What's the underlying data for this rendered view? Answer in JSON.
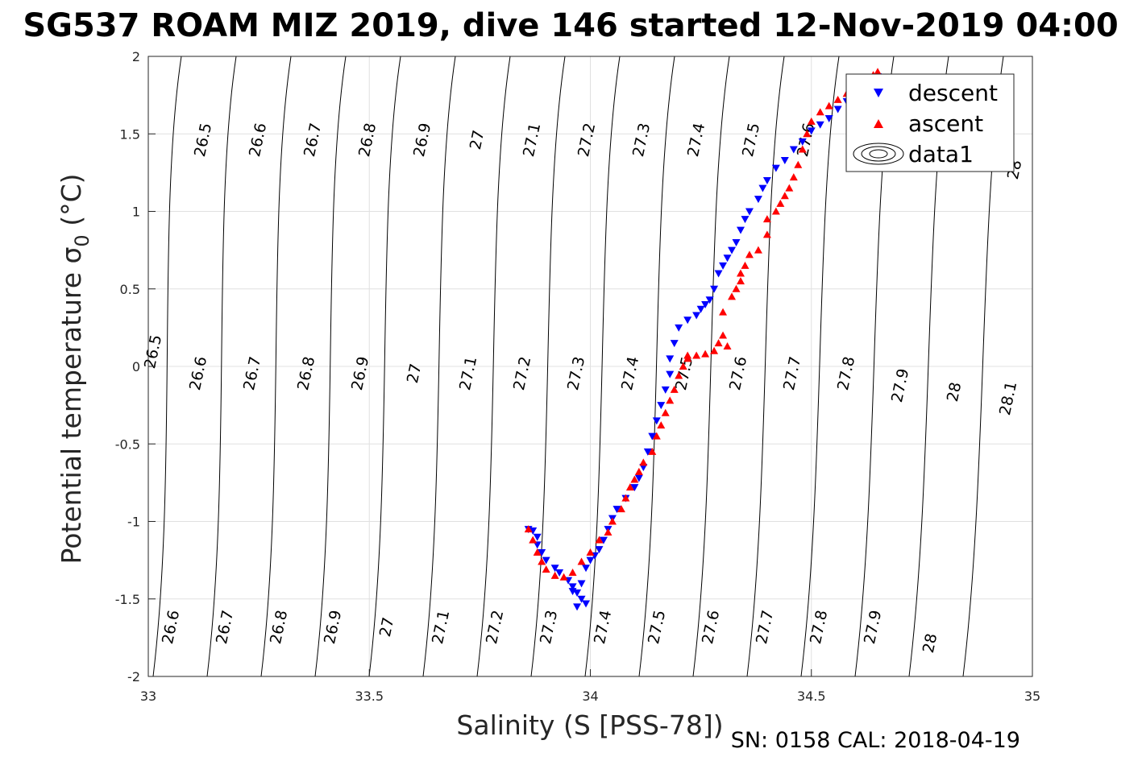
{
  "chart_data": {
    "type": "scatter",
    "title": "SG537 ROAM MIZ 2019, dive 146 started 12-Nov-2019 04:00",
    "xlabel": "Salinity (S [PSS-78])",
    "ylabel_main": "Potential temperature ",
    "ylabel_symbol": "σ",
    "ylabel_sub": "0",
    "ylabel_unit": " (°C)",
    "footer": "SN: 0158  CAL: 2018-04-19",
    "xlim": [
      33,
      35
    ],
    "ylim": [
      -2,
      2
    ],
    "xticks": [
      33,
      33.5,
      34,
      34.5,
      35
    ],
    "xtick_labels": [
      "33",
      "33.5",
      "34",
      "34.5",
      "35"
    ],
    "yticks": [
      -2,
      -1.5,
      -1,
      -0.5,
      0,
      0.5,
      1,
      1.5,
      2
    ],
    "ytick_labels": [
      "-2",
      "-1.5",
      "-1",
      "-0.5",
      "0",
      "0.5",
      "1",
      "1.5",
      "2"
    ],
    "grid": true,
    "legend_position": "top-right",
    "colors": {
      "descent": "#0000ff",
      "ascent": "#ff0000",
      "contour": "#000000",
      "grid": "#e0e0e0"
    },
    "series": [
      {
        "name": "descent",
        "marker": "triangle-down",
        "x": [
          33.86,
          33.87,
          33.88,
          33.88,
          33.89,
          33.9,
          33.92,
          33.93,
          33.95,
          33.96,
          33.97,
          33.98,
          33.99,
          33.97,
          33.96,
          33.98,
          33.99,
          34.0,
          34.01,
          34.02,
          34.03,
          34.04,
          34.05,
          34.06,
          34.08,
          34.1,
          34.11,
          34.12,
          34.13,
          34.14,
          34.15,
          34.16,
          34.17,
          34.18,
          34.18,
          34.19,
          34.2,
          34.22,
          34.24,
          34.25,
          34.26,
          34.27,
          34.28,
          34.29,
          34.3,
          34.31,
          34.32,
          34.33,
          34.34,
          34.35,
          34.36,
          34.38,
          34.39,
          34.4,
          34.42,
          34.44,
          34.46,
          34.48,
          34.5,
          34.52,
          34.54,
          34.56,
          34.58,
          34.6,
          34.62,
          34.64,
          34.65
        ],
        "y": [
          -1.05,
          -1.06,
          -1.1,
          -1.15,
          -1.2,
          -1.25,
          -1.3,
          -1.33,
          -1.38,
          -1.42,
          -1.46,
          -1.5,
          -1.53,
          -1.55,
          -1.45,
          -1.4,
          -1.3,
          -1.25,
          -1.22,
          -1.18,
          -1.12,
          -1.05,
          -0.98,
          -0.92,
          -0.85,
          -0.78,
          -0.72,
          -0.65,
          -0.55,
          -0.45,
          -0.35,
          -0.25,
          -0.15,
          -0.05,
          0.05,
          0.15,
          0.25,
          0.3,
          0.33,
          0.37,
          0.4,
          0.43,
          0.5,
          0.6,
          0.65,
          0.7,
          0.75,
          0.8,
          0.88,
          0.95,
          1.0,
          1.08,
          1.15,
          1.2,
          1.28,
          1.33,
          1.4,
          1.45,
          1.52,
          1.56,
          1.6,
          1.66,
          1.71,
          1.75,
          1.8,
          1.84,
          1.87
        ]
      },
      {
        "name": "ascent",
        "marker": "triangle-up",
        "x": [
          33.86,
          33.87,
          33.88,
          33.89,
          33.9,
          33.92,
          33.94,
          33.96,
          33.98,
          34.0,
          34.02,
          34.04,
          34.05,
          34.07,
          34.08,
          34.09,
          34.1,
          34.11,
          34.12,
          34.14,
          34.15,
          34.16,
          34.17,
          34.18,
          34.19,
          34.2,
          34.21,
          34.22,
          34.22,
          34.24,
          34.26,
          34.28,
          34.29,
          34.3,
          34.31,
          34.3,
          34.32,
          34.33,
          34.34,
          34.34,
          34.35,
          34.36,
          34.38,
          34.4,
          34.4,
          34.42,
          34.43,
          34.44,
          34.45,
          34.46,
          34.47,
          34.48,
          34.49,
          34.5,
          34.52,
          34.54,
          34.56,
          34.58,
          34.6,
          34.62,
          34.64,
          34.65
        ],
        "y": [
          -1.05,
          -1.12,
          -1.2,
          -1.26,
          -1.31,
          -1.35,
          -1.36,
          -1.33,
          -1.26,
          -1.2,
          -1.12,
          -1.07,
          -1.0,
          -0.92,
          -0.85,
          -0.78,
          -0.73,
          -0.68,
          -0.62,
          -0.55,
          -0.45,
          -0.38,
          -0.3,
          -0.22,
          -0.15,
          -0.06,
          0.0,
          0.05,
          0.07,
          0.07,
          0.08,
          0.1,
          0.15,
          0.2,
          0.13,
          0.35,
          0.45,
          0.5,
          0.55,
          0.6,
          0.65,
          0.72,
          0.75,
          0.85,
          0.95,
          1.0,
          1.05,
          1.1,
          1.15,
          1.22,
          1.3,
          1.4,
          1.5,
          1.58,
          1.64,
          1.68,
          1.72,
          1.76,
          1.8,
          1.85,
          1.88,
          1.9
        ]
      }
    ],
    "legend": [
      {
        "label": "descent",
        "symbol": "triangle-down"
      },
      {
        "label": "ascent",
        "symbol": "triangle-up"
      },
      {
        "label": "data1",
        "symbol": "contour"
      }
    ],
    "isopycnal_labels": {
      "top_row": [
        "26.5",
        "26.6",
        "26.7",
        "26.8",
        "26.9",
        "27",
        "27.1",
        "27.2",
        "27.3",
        "27.4",
        "27.5",
        "27.6",
        "28"
      ],
      "middle_row": [
        "26.5",
        "26.6",
        "26.7",
        "26.8",
        "26.9",
        "27",
        "27.1",
        "27.2",
        "27.3",
        "27.4",
        "27.5",
        "27.6",
        "27.7",
        "27.8",
        "27.9",
        "28",
        "28.1"
      ],
      "bottom_row": [
        "26.6",
        "26.7",
        "26.8",
        "26.9",
        "27",
        "27.1",
        "27.2",
        "27.3",
        "27.4",
        "27.5",
        "27.6",
        "27.7",
        "27.8",
        "27.9",
        "28"
      ]
    }
  }
}
